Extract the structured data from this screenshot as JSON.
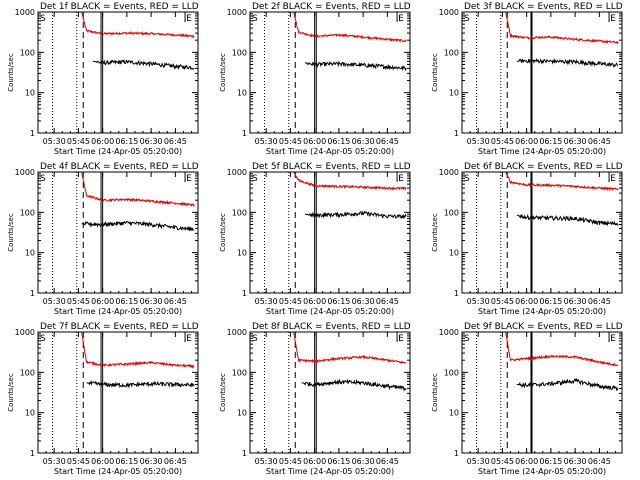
{
  "panel_titles": [
    "Det 1f BLACK = Events, RED = LLD",
    "Det 2f BLACK = Events, RED = LLD",
    "Det 3f BLACK = Events, RED = LLD",
    "Det 4f BLACK = Events, RED = LLD",
    "Det 5f BLACK = Events, RED = LLD",
    "Det 6f BLACK = Events, RED = LLD",
    "Det 7f BLACK = Events, RED = LLD",
    "Det 8f BLACK = Events, RED = LLD",
    "Det 9f BLACK = Events, RED = LLD"
  ],
  "xlabel": "Start Time (24-Apr-05 05:20:00)",
  "ylabel": "Counts/sec",
  "x_ticks": [
    "05:30",
    "05:45",
    "06:00",
    "06:15",
    "06:30",
    "06:45"
  ],
  "y_ticks": [
    "1",
    "10",
    "100",
    "1000"
  ],
  "corner_markers": [
    "S",
    "E"
  ],
  "colors": {
    "events": "#000000",
    "lld": "#dd0000",
    "axes": "#000000"
  },
  "chart_data": [
    {
      "type": "line",
      "title": "Det 1f BLACK = Events, RED = LLD",
      "xlabel": "Start Time (24-Apr-05 05:20:00)",
      "ylabel": "Counts/sec",
      "y_scale": "log",
      "ylim": [
        1,
        1000
      ],
      "xlim": [
        "05:20",
        "06:59"
      ],
      "series": [
        {
          "name": "LLD",
          "color": "red",
          "x": [
            "05:47",
            "05:50",
            "06:00",
            "06:15",
            "06:30",
            "06:45",
            "06:57"
          ],
          "y": [
            1000,
            340,
            290,
            300,
            290,
            270,
            250
          ]
        },
        {
          "name": "Events",
          "color": "black",
          "x": [
            "05:54",
            "06:00",
            "06:15",
            "06:30",
            "06:45",
            "06:57"
          ],
          "y": [
            60,
            55,
            58,
            52,
            45,
            42
          ]
        }
      ]
    },
    {
      "type": "line",
      "title": "Det 2f BLACK = Events, RED = LLD",
      "xlabel": "Start Time (24-Apr-05 05:20:00)",
      "ylabel": "Counts/sec",
      "y_scale": "log",
      "ylim": [
        1,
        1000
      ],
      "xlim": [
        "05:20",
        "06:59"
      ],
      "series": [
        {
          "name": "LLD",
          "color": "red",
          "x": [
            "05:47",
            "05:50",
            "06:00",
            "06:15",
            "06:30",
            "06:45",
            "06:57"
          ],
          "y": [
            1000,
            320,
            250,
            270,
            240,
            210,
            190
          ]
        },
        {
          "name": "Events",
          "color": "black",
          "x": [
            "05:54",
            "06:00",
            "06:15",
            "06:30",
            "06:45",
            "06:57"
          ],
          "y": [
            55,
            50,
            52,
            48,
            44,
            40
          ]
        }
      ]
    },
    {
      "type": "line",
      "title": "Det 3f BLACK = Events, RED = LLD",
      "xlabel": "Start Time (24-Apr-05 05:20:00)",
      "ylabel": "Counts/sec",
      "y_scale": "log",
      "ylim": [
        1,
        1000
      ],
      "xlim": [
        "05:20",
        "06:59"
      ],
      "series": [
        {
          "name": "LLD",
          "color": "red",
          "x": [
            "05:47",
            "05:50",
            "06:00",
            "06:15",
            "06:30",
            "06:45",
            "06:57"
          ],
          "y": [
            1000,
            260,
            230,
            240,
            210,
            190,
            175
          ]
        },
        {
          "name": "Events",
          "color": "black",
          "x": [
            "05:54",
            "06:00",
            "06:15",
            "06:30",
            "06:45",
            "06:57"
          ],
          "y": [
            60,
            62,
            60,
            58,
            52,
            48
          ]
        }
      ]
    },
    {
      "type": "line",
      "title": "Det 4f BLACK = Events, RED = LLD",
      "xlabel": "Start Time (24-Apr-05 05:20:00)",
      "ylabel": "Counts/sec",
      "y_scale": "log",
      "ylim": [
        1,
        1000
      ],
      "xlim": [
        "05:20",
        "06:59"
      ],
      "series": [
        {
          "name": "LLD",
          "color": "red",
          "x": [
            "05:47",
            "05:50",
            "06:00",
            "06:15",
            "06:30",
            "06:45",
            "06:57"
          ],
          "y": [
            1000,
            260,
            200,
            210,
            190,
            170,
            150
          ]
        },
        {
          "name": "Events",
          "color": "black",
          "x": [
            "05:47",
            "06:00",
            "06:15",
            "06:30",
            "06:45",
            "06:57"
          ],
          "y": [
            52,
            50,
            55,
            50,
            42,
            38
          ]
        }
      ]
    },
    {
      "type": "line",
      "title": "Det 5f BLACK = Events, RED = LLD",
      "xlabel": "Start Time (24-Apr-05 05:20:00)",
      "ylabel": "Counts/sec",
      "y_scale": "log",
      "ylim": [
        1,
        1000
      ],
      "xlim": [
        "05:20",
        "06:59"
      ],
      "series": [
        {
          "name": "LLD",
          "color": "red",
          "x": [
            "05:47",
            "05:50",
            "06:00",
            "06:15",
            "06:30",
            "06:45",
            "06:57"
          ],
          "y": [
            1000,
            620,
            460,
            440,
            420,
            400,
            390
          ]
        },
        {
          "name": "Events",
          "color": "black",
          "x": [
            "05:54",
            "06:00",
            "06:15",
            "06:30",
            "06:45",
            "06:57"
          ],
          "y": [
            90,
            85,
            88,
            95,
            80,
            78
          ]
        }
      ]
    },
    {
      "type": "line",
      "title": "Det 6f BLACK = Events, RED = LLD",
      "xlabel": "Start Time (24-Apr-05 05:20:00)",
      "ylabel": "Counts/sec",
      "y_scale": "log",
      "ylim": [
        1,
        1000
      ],
      "xlim": [
        "05:20",
        "06:59"
      ],
      "series": [
        {
          "name": "LLD",
          "color": "red",
          "x": [
            "05:47",
            "05:50",
            "06:00",
            "06:15",
            "06:30",
            "06:45",
            "06:57"
          ],
          "y": [
            1000,
            560,
            480,
            470,
            440,
            400,
            370
          ]
        },
        {
          "name": "Events",
          "color": "black",
          "x": [
            "05:54",
            "06:00",
            "06:15",
            "06:30",
            "06:45",
            "06:57"
          ],
          "y": [
            85,
            75,
            72,
            70,
            55,
            52
          ]
        }
      ]
    },
    {
      "type": "line",
      "title": "Det 7f BLACK = Events, RED = LLD",
      "xlabel": "Start Time (24-Apr-05 05:20:00)",
      "ylabel": "Counts/sec",
      "y_scale": "log",
      "ylim": [
        1,
        1000
      ],
      "xlim": [
        "05:20",
        "06:59"
      ],
      "series": [
        {
          "name": "LLD",
          "color": "red",
          "x": [
            "05:47",
            "05:50",
            "06:00",
            "06:15",
            "06:30",
            "06:45",
            "06:57"
          ],
          "y": [
            1000,
            180,
            150,
            160,
            175,
            150,
            140
          ]
        },
        {
          "name": "Events",
          "color": "black",
          "x": [
            "05:50",
            "06:00",
            "06:15",
            "06:30",
            "06:45",
            "06:57"
          ],
          "y": [
            55,
            50,
            48,
            52,
            50,
            48
          ]
        }
      ]
    },
    {
      "type": "line",
      "title": "Det 8f BLACK = Events, RED = LLD",
      "xlabel": "Start Time (24-Apr-05 05:20:00)",
      "ylabel": "Counts/sec",
      "y_scale": "log",
      "ylim": [
        1,
        1000
      ],
      "xlim": [
        "05:20",
        "06:59"
      ],
      "series": [
        {
          "name": "LLD",
          "color": "red",
          "x": [
            "05:47",
            "05:50",
            "06:00",
            "06:15",
            "06:30",
            "06:45",
            "06:57"
          ],
          "y": [
            1000,
            200,
            190,
            220,
            240,
            200,
            170
          ]
        },
        {
          "name": "Events",
          "color": "black",
          "x": [
            "05:52",
            "06:00",
            "06:15",
            "06:30",
            "06:45",
            "06:57"
          ],
          "y": [
            55,
            50,
            58,
            55,
            45,
            40
          ]
        }
      ]
    },
    {
      "type": "line",
      "title": "Det 9f BLACK = Events, RED = LLD",
      "xlabel": "Start Time (24-Apr-05 05:20:00)",
      "ylabel": "Counts/sec",
      "y_scale": "log",
      "ylim": [
        1,
        1000
      ],
      "xlim": [
        "05:20",
        "06:59"
      ],
      "series": [
        {
          "name": "LLD",
          "color": "red",
          "x": [
            "05:47",
            "05:50",
            "06:00",
            "06:15",
            "06:30",
            "06:45",
            "06:57"
          ],
          "y": [
            1000,
            200,
            220,
            250,
            240,
            180,
            150
          ]
        },
        {
          "name": "Events",
          "color": "black",
          "x": [
            "05:54",
            "06:00",
            "06:15",
            "06:30",
            "06:45",
            "06:57"
          ],
          "y": [
            50,
            48,
            52,
            62,
            45,
            40
          ]
        }
      ]
    }
  ]
}
